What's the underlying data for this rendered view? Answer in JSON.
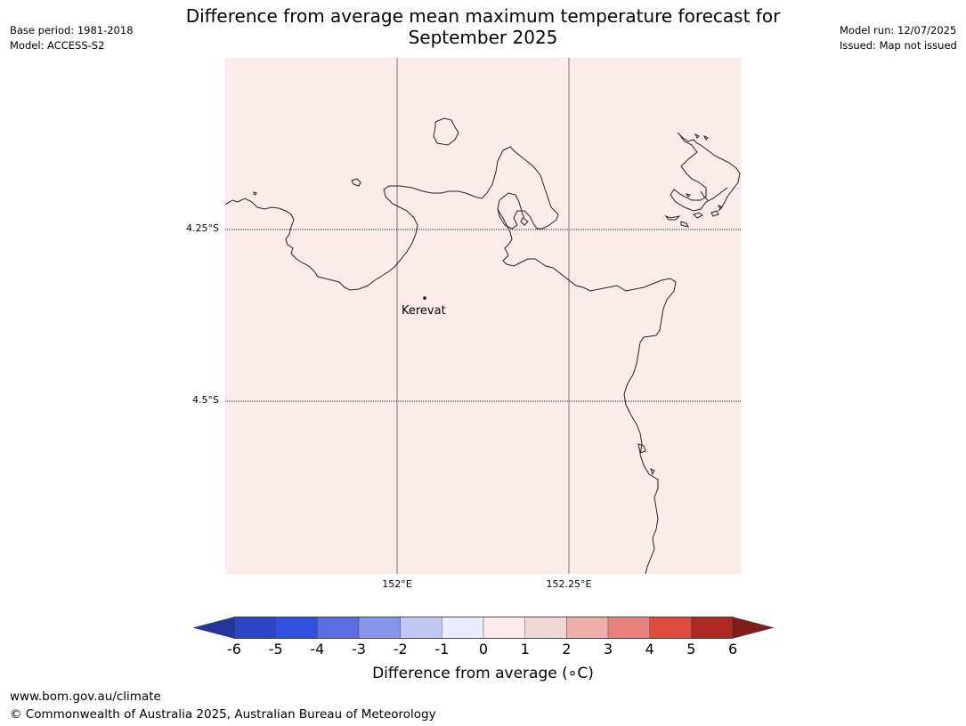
{
  "header": {
    "title_line1": "Difference from average mean maximum temperature forecast for",
    "title_line2": "September 2025",
    "base_period": "Base period: 1981-2018",
    "model": "Model: ACCESS-S2",
    "model_run": "Model run: 12/07/2025",
    "issued": "Issued: Map not issued"
  },
  "map": {
    "fill_color": "#fbebea",
    "coast_color": "#222222",
    "lat_labels": [
      "4.25°S",
      "4.5°S"
    ],
    "lon_labels": [
      "152°E",
      "152.25°E"
    ],
    "place": {
      "name": "Kerevat",
      "marker": "dot"
    }
  },
  "legend": {
    "ticks": [
      "-6",
      "-5",
      "-4",
      "-3",
      "-2",
      "-1",
      "0",
      "1",
      "2",
      "3",
      "4",
      "5",
      "6"
    ],
    "colors": [
      "#24369b",
      "#2e45c6",
      "#3050de",
      "#5a6ee0",
      "#8796e8",
      "#c0c8f3",
      "#e9ecfb",
      "#fbebea",
      "#f0d8d6",
      "#efaeaa",
      "#e8827c",
      "#db4c3e",
      "#ad2a22",
      "#7d1e1a"
    ],
    "label": "Difference from average (∘C)"
  },
  "footer": {
    "website": "www.bom.gov.au/climate",
    "copyright": "© Commonwealth of Australia 2025, Australian Bureau of Meteorology"
  }
}
